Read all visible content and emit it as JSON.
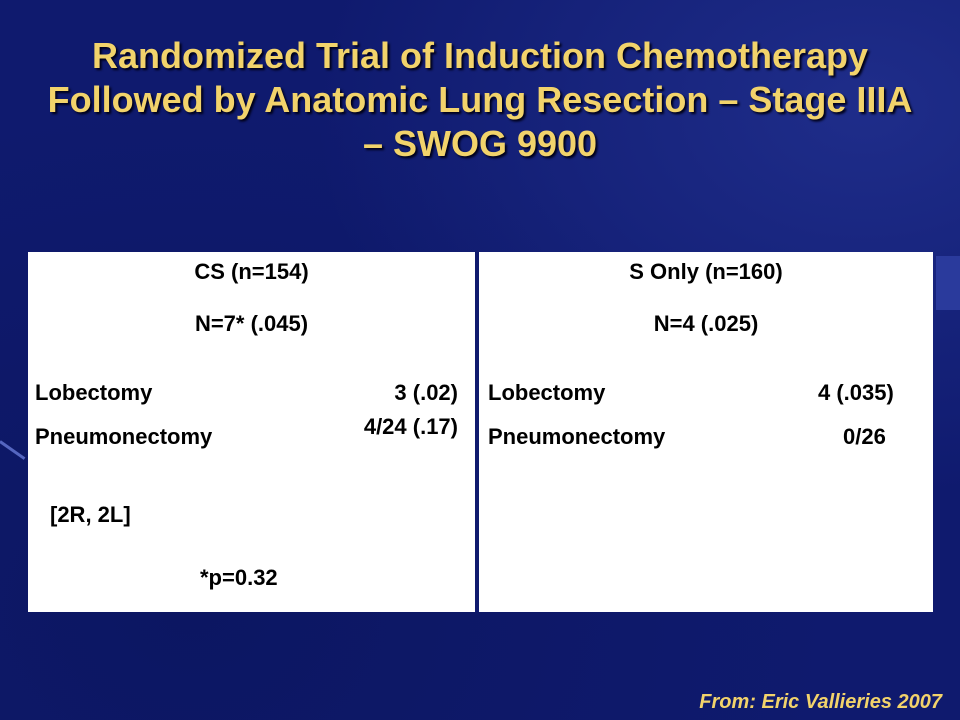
{
  "slide": {
    "title": "Randomized Trial of Induction Chemotherapy Followed by Anatomic Lung Resection – Stage IIIA – SWOG 9900",
    "source": "From:  Eric Vallieries 2007"
  },
  "table": {
    "left": {
      "header": "CS (n=154)",
      "count": "N=7* (.045)",
      "rows": [
        {
          "label": "Lobectomy",
          "value": "3 (.02)"
        },
        {
          "label": "Pneumonectomy",
          "value": "4/24 (.17)"
        }
      ],
      "note": "[2R, 2L]",
      "pvalue": "*p=0.32"
    },
    "right": {
      "header": "S Only (n=160)",
      "count": "N=4 (.025)",
      "rows": [
        {
          "label": "Lobectomy",
          "value": "4 (.035)"
        },
        {
          "label": "Pneumonectomy",
          "value": "0/26"
        }
      ]
    }
  },
  "colors": {
    "background": "#0f1a6e",
    "title": "#f2d36b",
    "panel": "#ffffff",
    "text": "#000000"
  }
}
